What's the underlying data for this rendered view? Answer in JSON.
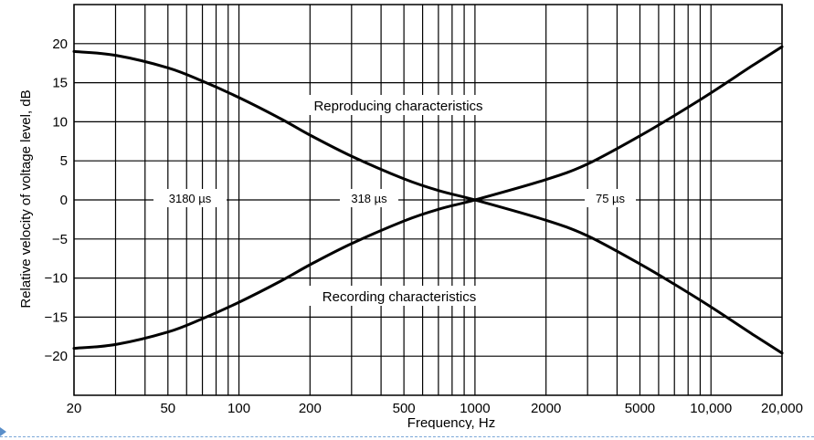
{
  "chart_data": {
    "type": "line",
    "title": "",
    "xlabel": "Frequency, Hz",
    "ylabel": "Relative velocity of voltage level, dB",
    "xscale": "log",
    "xlim": [
      20,
      20000
    ],
    "ylim": [
      -25,
      25
    ],
    "grid": true,
    "x_tick_labels": [
      "20",
      "50",
      "100",
      "200",
      "500",
      "1000",
      "2000",
      "5000",
      "10,000",
      "20,000"
    ],
    "x_tick_values": [
      20,
      50,
      100,
      200,
      500,
      1000,
      2000,
      5000,
      10000,
      20000
    ],
    "y_tick_labels": [
      "20",
      "15",
      "10",
      "5",
      "0",
      "−5",
      "−10",
      "−15",
      "−20"
    ],
    "y_tick_values": [
      20,
      15,
      10,
      5,
      0,
      -5,
      -10,
      -15,
      -20
    ],
    "series": [
      {
        "name": "Reproducing characteristics",
        "x": [
          20,
          30,
          50,
          70,
          100,
          150,
          200,
          300,
          500,
          700,
          1000,
          2000,
          3000,
          5000,
          7000,
          10000,
          15000,
          20000
        ],
        "y": [
          19.0,
          18.5,
          16.9,
          15.2,
          13.1,
          10.4,
          8.3,
          5.6,
          2.7,
          1.2,
          0.0,
          -2.6,
          -4.6,
          -8.2,
          -10.8,
          -13.7,
          -17.2,
          -19.6
        ]
      },
      {
        "name": "Recording characteristics",
        "x": [
          20,
          30,
          50,
          70,
          100,
          150,
          200,
          300,
          500,
          700,
          1000,
          2000,
          3000,
          5000,
          7000,
          10000,
          15000,
          20000
        ],
        "y": [
          -19.0,
          -18.5,
          -16.9,
          -15.2,
          -13.1,
          -10.4,
          -8.3,
          -5.6,
          -2.7,
          -1.2,
          0.0,
          2.6,
          4.6,
          8.2,
          10.8,
          13.7,
          17.2,
          19.6
        ]
      }
    ],
    "annotations": [
      "3180 µs",
      "318 µs",
      "75 µs"
    ]
  }
}
